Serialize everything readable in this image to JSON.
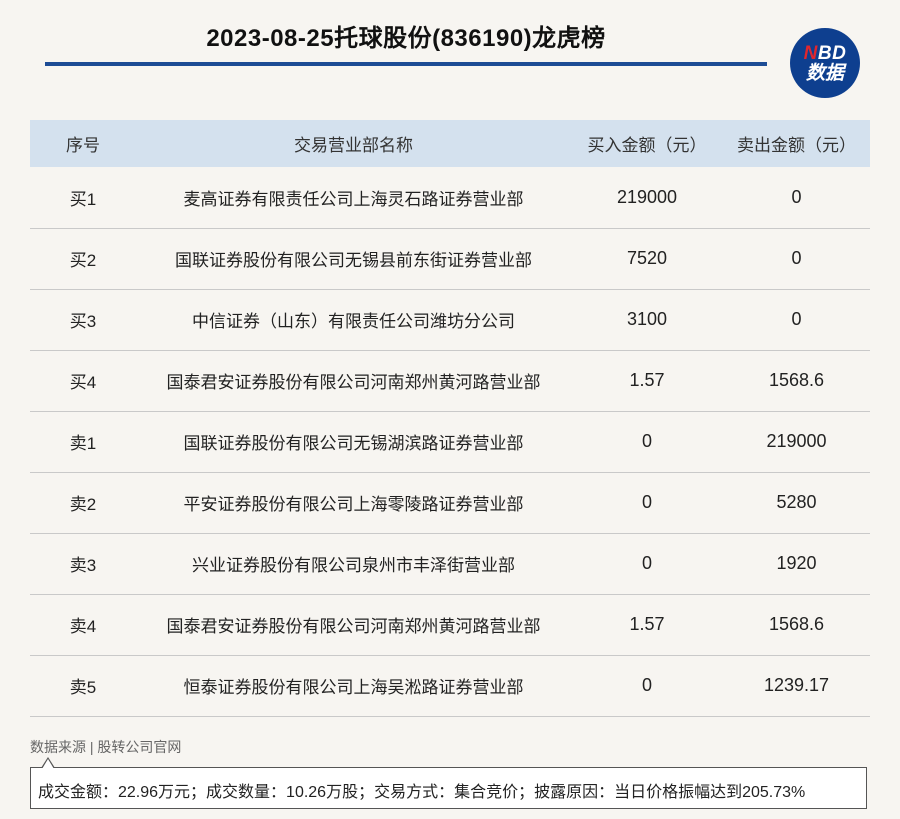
{
  "title": "2023-08-25托球股份(836190)龙虎榜",
  "logo": {
    "line1_n": "N",
    "line1_rest": "BD",
    "line2": "数据"
  },
  "colors": {
    "accent": "#1d4c95",
    "header_bg": "#d4e1ee",
    "logo_bg": "#0e3f8f",
    "logo_red": "#e0262d"
  },
  "table": {
    "headers": [
      "序号",
      "交易营业部名称",
      "买入金额（元）",
      "卖出金额（元）"
    ],
    "rows": [
      [
        "买1",
        "麦高证券有限责任公司上海灵石路证券营业部",
        "219000",
        "0"
      ],
      [
        "买2",
        "国联证券股份有限公司无锡县前东街证券营业部",
        "7520",
        "0"
      ],
      [
        "买3",
        "中信证券（山东）有限责任公司潍坊分公司",
        "3100",
        "0"
      ],
      [
        "买4",
        "国泰君安证券股份有限公司河南郑州黄河路营业部",
        "1.57",
        "1568.6"
      ],
      [
        "卖1",
        "国联证券股份有限公司无锡湖滨路证券营业部",
        "0",
        "219000"
      ],
      [
        "卖2",
        "平安证券股份有限公司上海零陵路证券营业部",
        "0",
        "5280"
      ],
      [
        "卖3",
        "兴业证券股份有限公司泉州市丰泽街营业部",
        "0",
        "1920"
      ],
      [
        "卖4",
        "国泰君安证券股份有限公司河南郑州黄河路营业部",
        "1.57",
        "1568.6"
      ],
      [
        "卖5",
        "恒泰证券股份有限公司上海吴淞路证券营业部",
        "0",
        "1239.17"
      ]
    ]
  },
  "source": "数据来源 | 股转公司官网",
  "note": "成交金额：22.96万元；成交数量：10.26万股；交易方式：集合竞价；披露原因：当日价格振幅达到205.73%"
}
